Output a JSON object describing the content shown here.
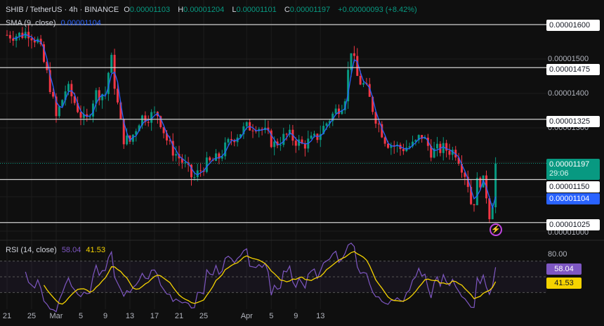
{
  "header": {
    "symbol": "SHIB / TetherUS · 4h · BINANCE",
    "o_label": "O",
    "o": "0.00001103",
    "h_label": "H",
    "h": "0.00001204",
    "l_label": "L",
    "l": "0.00001101",
    "c_label": "C",
    "c": "0.00001197",
    "change": "+0.00000093 (+8.42%)"
  },
  "sma": {
    "label": "SMA (9, close)",
    "value": "0.00001104",
    "color": "#2962ff"
  },
  "rsi": {
    "label": "RSI (14, close)",
    "value": "58.04",
    "ma_value": "41.53",
    "color": "#7e57c2",
    "ma_color": "#f5d300",
    "level_label": "80.00"
  },
  "price_axis": [
    "0.00001500",
    "0.00001400",
    "0.00001300",
    "0.00001000"
  ],
  "hlines": [
    {
      "price": 1600,
      "label": "0.00001600"
    },
    {
      "price": 1475,
      "label": "0.00001475"
    },
    {
      "price": 1325,
      "label": "0.00001325"
    },
    {
      "price": 1150,
      "label": "0.00001150"
    },
    {
      "price": 1025,
      "label": "0.00001025"
    }
  ],
  "last": {
    "price": "0.00001197",
    "countdown": "29:06",
    "sma_price": "0.00001104"
  },
  "time_axis": [
    {
      "t": 0,
      "label": "21"
    },
    {
      "t": 4,
      "label": "25"
    },
    {
      "t": 8,
      "label": "Mar"
    },
    {
      "t": 12,
      "label": "5"
    },
    {
      "t": 16,
      "label": "9"
    },
    {
      "t": 20,
      "label": "13"
    },
    {
      "t": 24,
      "label": "17"
    },
    {
      "t": 28,
      "label": "21"
    },
    {
      "t": 32,
      "label": "25"
    },
    {
      "t": 39,
      "label": "Apr"
    },
    {
      "t": 43,
      "label": "5"
    },
    {
      "t": 47,
      "label": "9"
    },
    {
      "t": 51,
      "label": "13"
    }
  ],
  "chart_data": {
    "type": "candlestick",
    "unit": "price x 1e-8 USDT",
    "ylim": [
      960,
      1660
    ],
    "keypoints": [
      [
        0,
        1570
      ],
      [
        2.3,
        1570
      ],
      [
        3.4,
        1580
      ],
      [
        5.1,
        1550
      ],
      [
        6.9,
        1430
      ],
      [
        8,
        1330
      ],
      [
        9.7,
        1420
      ],
      [
        11.4,
        1360
      ],
      [
        12.8,
        1310
      ],
      [
        14.3,
        1400
      ],
      [
        16,
        1400
      ],
      [
        16.9,
        1510
      ],
      [
        17.7,
        1400
      ],
      [
        18.9,
        1270
      ],
      [
        20,
        1260
      ],
      [
        21.7,
        1330
      ],
      [
        24.6,
        1340
      ],
      [
        26.3,
        1250
      ],
      [
        28.6,
        1200
      ],
      [
        30.3,
        1150
      ],
      [
        32,
        1190
      ],
      [
        34.3,
        1210
      ],
      [
        36.6,
        1270
      ],
      [
        38.9,
        1300
      ],
      [
        40.6,
        1310
      ],
      [
        42.3,
        1280
      ],
      [
        43.4,
        1250
      ],
      [
        45.7,
        1280
      ],
      [
        48,
        1250
      ],
      [
        50.3,
        1270
      ],
      [
        52.6,
        1330
      ],
      [
        54.9,
        1380
      ],
      [
        56,
        1530
      ],
      [
        57.1,
        1440
      ],
      [
        58.3,
        1420
      ],
      [
        60,
        1330
      ],
      [
        61.7,
        1260
      ],
      [
        64,
        1240
      ],
      [
        66.3,
        1250
      ],
      [
        67.4,
        1280
      ],
      [
        69.1,
        1230
      ],
      [
        70.9,
        1240
      ],
      [
        73.1,
        1230
      ],
      [
        74.9,
        1150
      ],
      [
        75.7,
        1060
      ],
      [
        76.6,
        1150
      ],
      [
        77.7,
        1140
      ],
      [
        78.5,
        1050
      ],
      [
        79.2,
        1100
      ],
      [
        79.7,
        1197
      ]
    ]
  }
}
